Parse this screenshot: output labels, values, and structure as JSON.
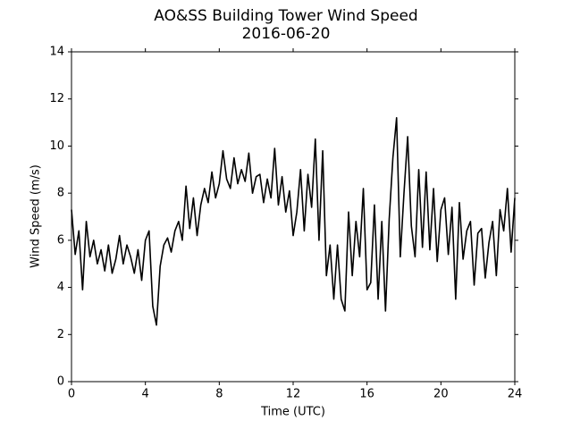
{
  "chart_data": {
    "type": "line",
    "title": "AO&SS Building Tower Wind Speed",
    "subtitle": "2016-06-20",
    "x_label": "Time (UTC)",
    "y_label": "Wind Speed (m/s)",
    "xlim": [
      0,
      24
    ],
    "ylim": [
      0,
      14
    ],
    "xticks": [
      0,
      4,
      8,
      12,
      16,
      20,
      24
    ],
    "yticks": [
      0,
      2,
      4,
      6,
      8,
      10,
      12,
      14
    ],
    "grid": false,
    "x": [
      0,
      0.2,
      0.4,
      0.6,
      0.8,
      1,
      1.2,
      1.4,
      1.6,
      1.8,
      2,
      2.2,
      2.4,
      2.6,
      2.8,
      3,
      3.2,
      3.4,
      3.6,
      3.8,
      4,
      4.2,
      4.4,
      4.6,
      4.8,
      5,
      5.2,
      5.4,
      5.6,
      5.8,
      6,
      6.2,
      6.4,
      6.6,
      6.8,
      7,
      7.2,
      7.4,
      7.6,
      7.8,
      8,
      8.2,
      8.4,
      8.6,
      8.8,
      9,
      9.2,
      9.4,
      9.6,
      9.8,
      10,
      10.2,
      10.4,
      10.6,
      10.8,
      11,
      11.2,
      11.4,
      11.6,
      11.8,
      12,
      12.2,
      12.4,
      12.6,
      12.8,
      13,
      13.2,
      13.4,
      13.6,
      13.8,
      14,
      14.2,
      14.4,
      14.6,
      14.8,
      15,
      15.2,
      15.4,
      15.6,
      15.8,
      16,
      16.2,
      16.4,
      16.6,
      16.8,
      17,
      17.2,
      17.4,
      17.6,
      17.8,
      18,
      18.2,
      18.4,
      18.6,
      18.8,
      19,
      19.2,
      19.4,
      19.6,
      19.8,
      20,
      20.2,
      20.4,
      20.6,
      20.8,
      21,
      21.2,
      21.4,
      21.6,
      21.8,
      22,
      22.2,
      22.4,
      22.6,
      22.8,
      23,
      23.2,
      23.4,
      23.6,
      23.8,
      24
    ],
    "series": [
      {
        "name": "Wind Speed",
        "color": "#000000",
        "values": [
          7.3,
          5.4,
          6.4,
          3.9,
          6.8,
          5.3,
          6.0,
          5.0,
          5.6,
          4.7,
          5.8,
          4.6,
          5.2,
          6.2,
          5.0,
          5.8,
          5.3,
          4.6,
          5.6,
          4.3,
          6.0,
          6.4,
          3.2,
          2.4,
          4.9,
          5.8,
          6.1,
          5.5,
          6.4,
          6.8,
          6.0,
          8.3,
          6.5,
          7.8,
          6.2,
          7.5,
          8.2,
          7.6,
          8.9,
          7.8,
          8.4,
          9.8,
          8.6,
          8.2,
          9.5,
          8.4,
          9.0,
          8.5,
          9.7,
          8.0,
          8.7,
          8.8,
          7.6,
          8.6,
          7.8,
          9.9,
          7.5,
          8.7,
          7.2,
          8.1,
          6.2,
          7.2,
          9.0,
          6.4,
          8.8,
          7.4,
          10.3,
          6.0,
          9.8,
          4.5,
          5.8,
          3.5,
          5.8,
          3.5,
          3.0,
          7.2,
          4.5,
          6.8,
          5.3,
          8.2,
          3.9,
          4.2,
          7.5,
          3.5,
          6.8,
          3.0,
          6.9,
          9.5,
          11.2,
          5.3,
          8.0,
          10.4,
          6.6,
          5.3,
          9.0,
          5.7,
          8.9,
          5.6,
          8.2,
          5.1,
          7.3,
          7.8,
          5.4,
          7.4,
          3.5,
          7.6,
          5.2,
          6.4,
          6.8,
          4.1,
          6.3,
          6.5,
          4.4,
          5.9,
          6.8,
          4.5,
          7.3,
          6.4,
          8.2,
          5.5,
          7.8
        ]
      }
    ]
  }
}
